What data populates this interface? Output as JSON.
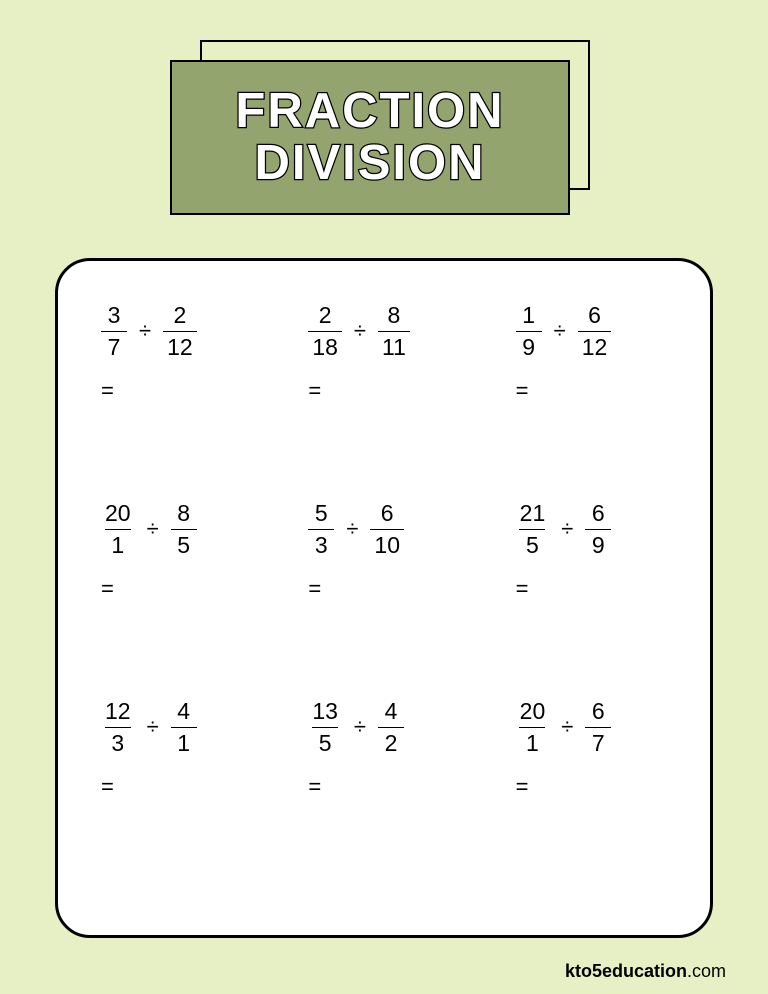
{
  "title": {
    "line1": "FRACTION",
    "line2": "DIVISION"
  },
  "colors": {
    "pageBg": "#e6f0c4",
    "titleBoxBg": "#94a46f",
    "titleTextFill": "#ffffff",
    "titleTextStroke": "#000000",
    "worksheetBg": "#ffffff",
    "border": "#000000"
  },
  "problems": [
    {
      "a": {
        "n": "3",
        "d": "7"
      },
      "b": {
        "n": "2",
        "d": "12"
      }
    },
    {
      "a": {
        "n": "2",
        "d": "18"
      },
      "b": {
        "n": "8",
        "d": "11"
      }
    },
    {
      "a": {
        "n": "1",
        "d": "9"
      },
      "b": {
        "n": "6",
        "d": "12"
      }
    },
    {
      "a": {
        "n": "20",
        "d": "1"
      },
      "b": {
        "n": "8",
        "d": "5"
      }
    },
    {
      "a": {
        "n": "5",
        "d": "3"
      },
      "b": {
        "n": "6",
        "d": "10"
      }
    },
    {
      "a": {
        "n": "21",
        "d": "5"
      },
      "b": {
        "n": "6",
        "d": "9"
      }
    },
    {
      "a": {
        "n": "12",
        "d": "3"
      },
      "b": {
        "n": "4",
        "d": "1"
      }
    },
    {
      "a": {
        "n": "13",
        "d": "5"
      },
      "b": {
        "n": "4",
        "d": "2"
      }
    },
    {
      "a": {
        "n": "20",
        "d": "1"
      },
      "b": {
        "n": "6",
        "d": "7"
      }
    }
  ],
  "symbols": {
    "divide": "÷",
    "equals": "="
  },
  "footer": {
    "bold": "kto5education",
    "rest": ".com"
  }
}
